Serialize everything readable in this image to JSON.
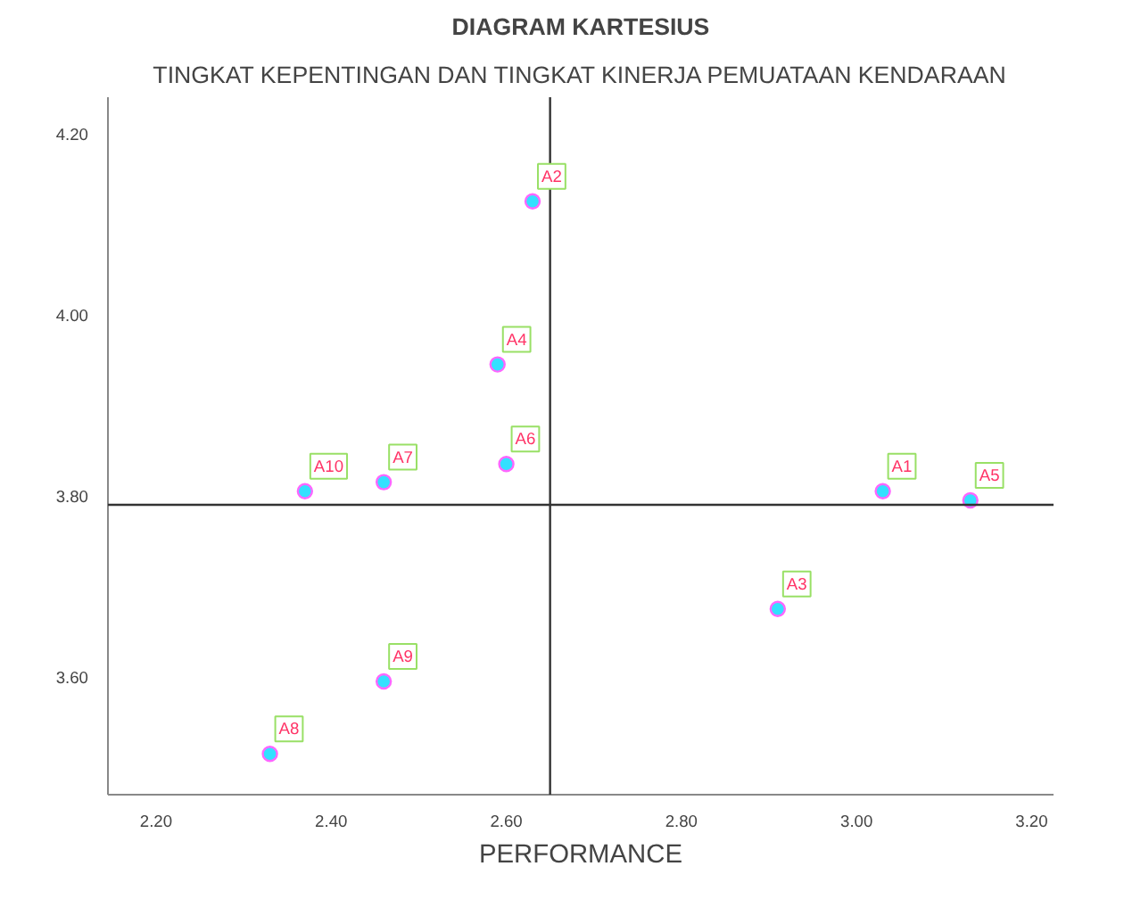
{
  "chart_data": {
    "type": "scatter",
    "title": "DIAGRAM KARTESIUS",
    "subtitle": "TINGKAT KEPENTINGAN DAN TINGKAT KINERJA PEMUATAAN KENDARAAN",
    "xlabel": "PERFORMANCE",
    "x": [
      3.03,
      2.63,
      2.91,
      2.59,
      3.13,
      2.6,
      2.46,
      2.33,
      2.46,
      2.37
    ],
    "series": [
      {
        "color": "#33e0ff",
        "values": [
          3.805,
          4.125,
          3.675,
          3.945,
          3.795,
          3.835,
          3.815,
          3.515,
          3.595,
          3.805
        ]
      }
    ],
    "marker": "circle",
    "grid": false,
    "xlim": [
      2.145,
      3.225
    ],
    "ylim": [
      3.47,
      4.24
    ],
    "xticks": [
      {
        "value": 2.2,
        "label": "2.20"
      },
      {
        "value": 2.4,
        "label": "2.40"
      },
      {
        "value": 2.6,
        "label": "2.60"
      },
      {
        "value": 2.8,
        "label": "2.80"
      },
      {
        "value": 3.0,
        "label": "3.00"
      },
      {
        "value": 3.2,
        "label": "3.20"
      }
    ],
    "yticks": [
      {
        "value": 3.6,
        "label": "3.60"
      },
      {
        "value": 3.8,
        "label": "3.80"
      },
      {
        "value": 4.0,
        "label": "4.00"
      },
      {
        "value": 4.2,
        "label": "4.20"
      }
    ],
    "ref_lines": [
      {
        "axis": "x",
        "value": 2.65,
        "color": "#333333"
      },
      {
        "axis": "y",
        "value": 3.79,
        "color": "#333333"
      }
    ],
    "annotations": [
      {
        "text": "A1",
        "x": 3.03,
        "y": 3.805
      },
      {
        "text": "A2",
        "x": 2.63,
        "y": 4.125
      },
      {
        "text": "A3",
        "x": 2.91,
        "y": 3.675
      },
      {
        "text": "A4",
        "x": 2.59,
        "y": 3.945
      },
      {
        "text": "A5",
        "x": 3.13,
        "y": 3.795
      },
      {
        "text": "A6",
        "x": 2.6,
        "y": 3.835
      },
      {
        "text": "A7",
        "x": 2.46,
        "y": 3.815
      },
      {
        "text": "A8",
        "x": 2.33,
        "y": 3.515
      },
      {
        "text": "A9",
        "x": 2.46,
        "y": 3.595
      },
      {
        "text": "A10",
        "x": 2.37,
        "y": 3.805
      }
    ]
  }
}
